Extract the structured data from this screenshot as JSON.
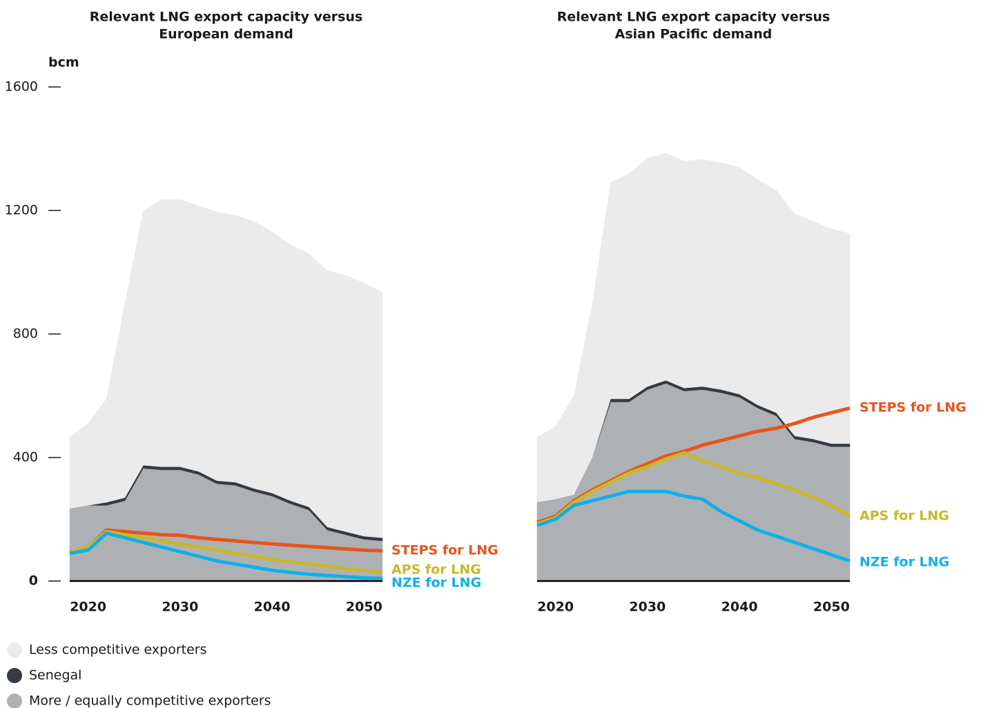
{
  "chart_data": [
    {
      "type": "area",
      "title": [
        "Relevant LNG export capacity versus",
        "European demand"
      ],
      "y_label": "bcm",
      "x": [
        2018,
        2020,
        2022,
        2024,
        2026,
        2028,
        2030,
        2032,
        2034,
        2036,
        2038,
        2040,
        2042,
        2044,
        2046,
        2048,
        2050,
        2052
      ],
      "xlim": [
        2018,
        2052
      ],
      "xticks": [
        2020,
        2030,
        2040,
        2050
      ],
      "ylim": [
        0,
        1600
      ],
      "yticks": [
        0,
        400,
        800,
        1200,
        1600
      ],
      "series": [
        {
          "name": "Less competitive exporters",
          "color": "#ebebeb",
          "values": [
            230,
            265,
            335,
            630,
            825,
            865,
            865,
            860,
            870,
            865,
            865,
            845,
            830,
            820,
            830,
            830,
            820,
            795
          ]
        },
        {
          "name": "Senegal",
          "color": "#353b40",
          "values": [
            0,
            0,
            10,
            10,
            10,
            10,
            10,
            10,
            10,
            10,
            10,
            10,
            10,
            10,
            10,
            10,
            10,
            10
          ]
        },
        {
          "name": "More / equally competitive exporters",
          "color": "#aeb1b4",
          "values": [
            235,
            245,
            245,
            260,
            365,
            360,
            360,
            345,
            315,
            310,
            290,
            275,
            250,
            230,
            165,
            150,
            135,
            130
          ]
        },
        {
          "name": "STEPS for LNG",
          "type": "line",
          "color": "#e8551c",
          "values": [
            95,
            110,
            165,
            160,
            155,
            150,
            148,
            140,
            135,
            130,
            125,
            120,
            116,
            112,
            108,
            104,
            100,
            98
          ]
        },
        {
          "name": "APS for LNG",
          "type": "line",
          "color": "#c8b82a",
          "values": [
            95,
            110,
            160,
            150,
            140,
            130,
            120,
            110,
            100,
            90,
            80,
            70,
            62,
            55,
            48,
            40,
            35,
            28
          ]
        },
        {
          "name": "NZE for LNG",
          "type": "line",
          "color": "#0fb0e8",
          "values": [
            90,
            100,
            155,
            140,
            125,
            110,
            95,
            80,
            65,
            55,
            45,
            35,
            28,
            22,
            18,
            14,
            10,
            8
          ]
        }
      ]
    },
    {
      "type": "area",
      "title": [
        "Relevant LNG export capacity versus",
        "Asian Pacific demand"
      ],
      "x": [
        2018,
        2020,
        2022,
        2024,
        2026,
        2028,
        2030,
        2032,
        2034,
        2036,
        2038,
        2040,
        2042,
        2044,
        2046,
        2048,
        2050,
        2052
      ],
      "xlim": [
        2018,
        2052
      ],
      "xticks": [
        2020,
        2030,
        2040,
        2050
      ],
      "ylim": [
        0,
        1600
      ],
      "series": [
        {
          "color": "#ebebeb",
          "values": [
            210,
            235,
            320,
            500,
            700,
            730,
            740,
            735,
            735,
            735,
            735,
            735,
            730,
            720,
            720,
            705,
            695,
            680
          ]
        },
        {
          "color": "#353b40",
          "values": [
            0,
            0,
            0,
            0,
            10,
            10,
            10,
            10,
            10,
            10,
            10,
            10,
            10,
            10,
            10,
            10,
            10,
            10
          ]
        },
        {
          "color": "#aeb1b4",
          "values": [
            255,
            265,
            280,
            400,
            580,
            580,
            620,
            640,
            615,
            620,
            610,
            595,
            560,
            535,
            460,
            450,
            435,
            435
          ]
        },
        {
          "name": "STEPS for LNG",
          "type": "line",
          "color": "#e8551c",
          "values": [
            190,
            210,
            260,
            295,
            325,
            355,
            380,
            405,
            420,
            440,
            455,
            470,
            485,
            495,
            510,
            530,
            545,
            560
          ]
        },
        {
          "name": "APS for LNG",
          "type": "line",
          "color": "#c8b82a",
          "values": [
            185,
            205,
            255,
            290,
            320,
            350,
            370,
            395,
            415,
            390,
            370,
            350,
            335,
            315,
            295,
            270,
            245,
            210
          ]
        },
        {
          "name": "NZE for LNG",
          "type": "line",
          "color": "#0fb0e8",
          "values": [
            180,
            200,
            245,
            260,
            275,
            290,
            290,
            290,
            275,
            265,
            225,
            195,
            165,
            145,
            125,
            105,
            85,
            65
          ]
        }
      ]
    }
  ]
}
